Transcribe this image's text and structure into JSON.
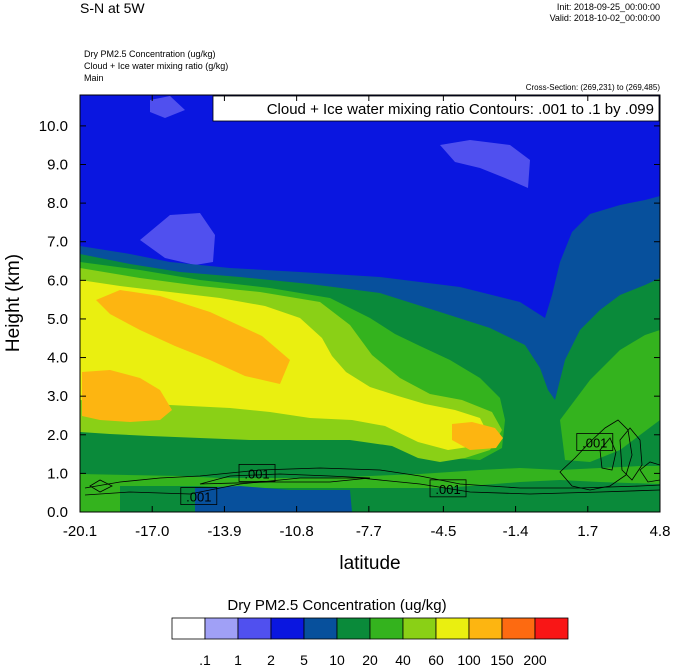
{
  "header": {
    "title": "S-N at 5W",
    "init": "Init: 2018-09-25_00:00:00",
    "valid": "Valid: 2018-10-02_00:00:00",
    "field1": "Dry PM2.5 Concentration   (ug/kg)",
    "field2": "Cloud + Ice water mixing ratio   (g/kg)",
    "field3": "Main",
    "cross_section": "Cross-Section: (269,231) to (269,485)"
  },
  "chart_data": {
    "type": "heatmap",
    "xlabel": "latitude",
    "ylabel": "Height (km)",
    "x_ticks": [
      "-20.1",
      "-17.0",
      "-13.9",
      "-10.8",
      "-7.7",
      "-4.5",
      "-1.4",
      "1.7",
      "4.8"
    ],
    "x_range": [
      -20.1,
      4.8
    ],
    "y_ticks": [
      "0.0",
      "1.0",
      "2.0",
      "3.0",
      "4.0",
      "5.0",
      "6.0",
      "7.0",
      "8.0",
      "9.0",
      "10.0"
    ],
    "y_range": [
      0,
      10.8
    ],
    "contour_title": "Cloud + Ice water mixing ratio Contours: .001 to .1 by .099",
    "contour_labels": [
      {
        "text": ".001",
        "lat": -15.0,
        "h": 0.4
      },
      {
        "text": ".001",
        "lat": -12.5,
        "h": 1.0
      },
      {
        "text": ".001",
        "lat": -4.3,
        "h": 0.6
      },
      {
        "text": ".001",
        "lat": 2.0,
        "h": 1.8
      }
    ],
    "colorbar": {
      "title": "Dry PM2.5 Concentration  (ug/kg)",
      "tick_labels": [
        ".1",
        "1",
        "2",
        "5",
        "10",
        "20",
        "40",
        "60",
        "100",
        "150",
        "200"
      ],
      "colors": [
        "#ffffff",
        "#a0a0f6",
        "#5050ef",
        "#0a16e0",
        "#07509c",
        "#0a8a3a",
        "#34b31e",
        "#8ad016",
        "#eaef10",
        "#fdb511",
        "#fd6a11",
        "#f91616"
      ]
    }
  }
}
